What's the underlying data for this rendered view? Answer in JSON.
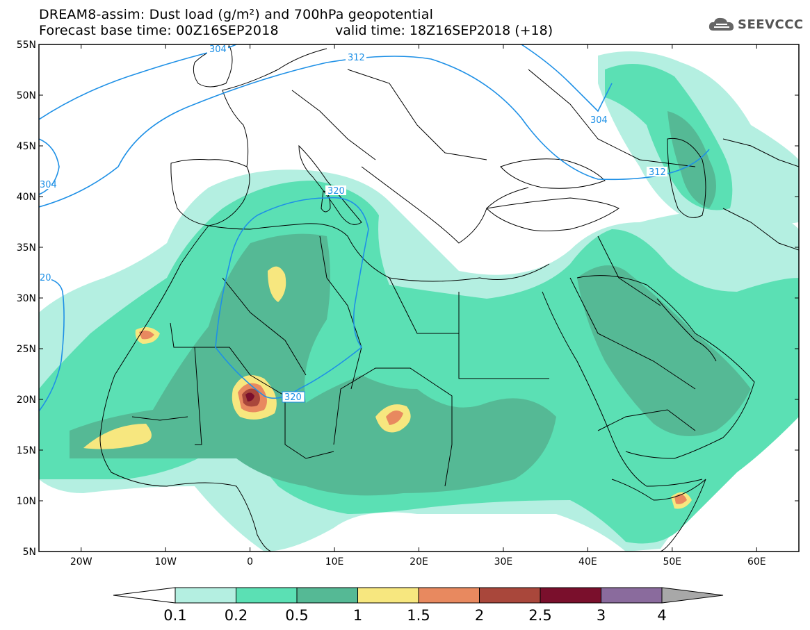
{
  "header": {
    "line1": "DREAM8-assim: Dust load (g/m²) and 700hPa geopotential",
    "line2": "Forecast base time: 00Z16SEP2018",
    "valid": "valid time: 18Z16SEP2018 (+18)"
  },
  "logo": {
    "text": "SEEVCCC",
    "icon": "cloud-icon"
  },
  "map": {
    "lon_range": [
      -25,
      65
    ],
    "lat_range": [
      5,
      55
    ],
    "lat_ticks": [
      "5N",
      "10N",
      "15N",
      "20N",
      "25N",
      "30N",
      "35N",
      "40N",
      "45N",
      "50N",
      "55N"
    ],
    "lon_ticks": [
      "20W",
      "10W",
      "0",
      "10E",
      "20E",
      "30E",
      "40E",
      "50E",
      "60E"
    ],
    "geopotential_labels": [
      "304",
      "312",
      "304",
      "312",
      "304",
      "320",
      "20",
      "320"
    ]
  },
  "colorbar": {
    "labels": [
      "0.1",
      "0.2",
      "0.5",
      "1",
      "1.5",
      "2",
      "2.5",
      "3",
      "4"
    ],
    "colors": [
      "#b4efe1",
      "#5be0b4",
      "#55b995",
      "#f7e77f",
      "#e8895f",
      "#a9473b",
      "#7a0f2c",
      "#8a6b9d"
    ],
    "over_color": "#a8a8a8",
    "under_color": "#ffffff"
  },
  "colors": {
    "isoline": "#1e90e6",
    "border": "#000000"
  }
}
